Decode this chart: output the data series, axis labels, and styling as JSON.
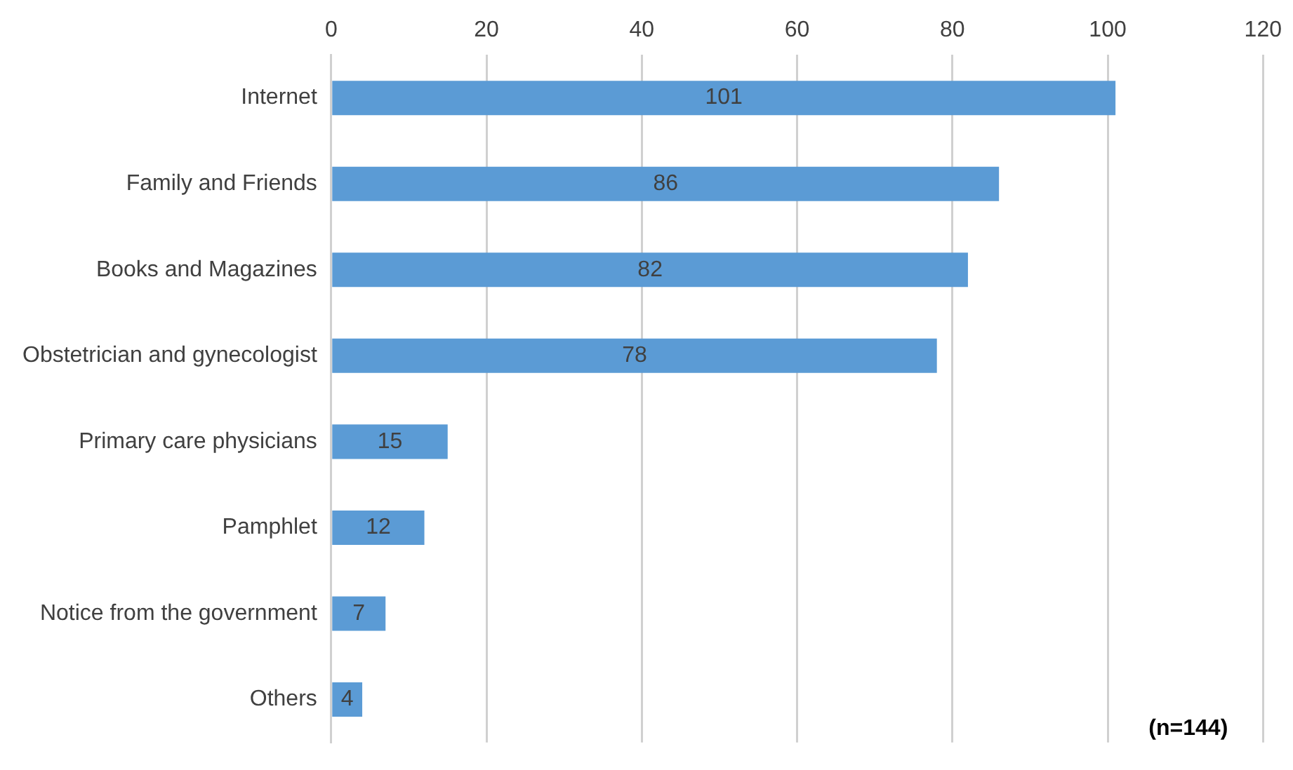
{
  "chart_data": {
    "type": "bar",
    "orientation": "horizontal",
    "categories": [
      "Internet",
      "Family and Friends",
      "Books and Magazines",
      "Obstetrician and gynecologist",
      "Primary care physicians",
      "Pamphlet",
      "Notice from the government",
      "Others"
    ],
    "values": [
      101,
      86,
      82,
      78,
      15,
      12,
      7,
      4
    ],
    "color": "#5b9bd5",
    "xlim": [
      0,
      120
    ],
    "xticks": [
      0,
      20,
      40,
      60,
      80,
      100,
      120
    ],
    "grid": "x",
    "data_labels": true,
    "annotations": [
      "(n=144)"
    ]
  }
}
